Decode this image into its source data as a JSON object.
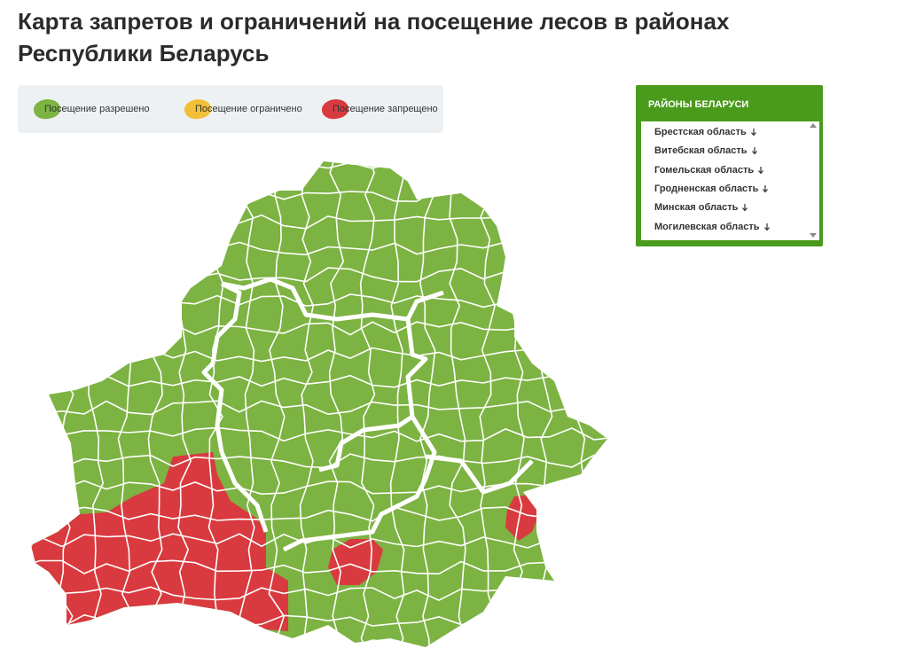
{
  "header": {
    "title": "Карта запретов и ограничений на посещение лесов в районах Республики Беларусь"
  },
  "legend": {
    "items": [
      "Посещение разрешено",
      "Посещение ограничено",
      "Посещение запрещено"
    ]
  },
  "sidebar": {
    "title": "РАЙОНЫ БЕЛАРУСИ",
    "regions": [
      "Брестская область",
      "Витебская область",
      "Гомельская область",
      "Гродненская область",
      "Минская область",
      "Могилевская область"
    ]
  }
}
